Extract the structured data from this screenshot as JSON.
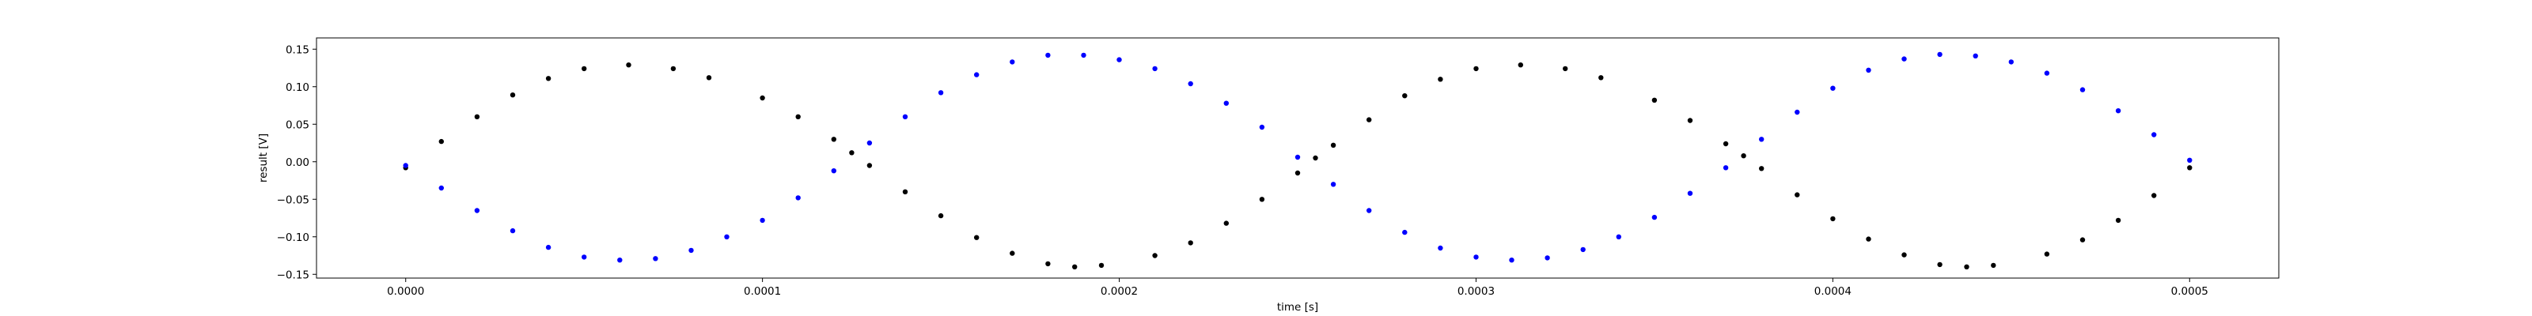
{
  "chart_data": {
    "type": "scatter",
    "title": "",
    "xlabel": "time [s]",
    "ylabel": "result [V]",
    "xlim": [
      -2.5e-05,
      0.000525
    ],
    "ylim": [
      -0.155,
      0.165
    ],
    "grid": false,
    "x_ticks": [
      {
        "value": 0.0,
        "label": "0.0000"
      },
      {
        "value": 0.0001,
        "label": "0.0001"
      },
      {
        "value": 0.0002,
        "label": "0.0002"
      },
      {
        "value": 0.0003,
        "label": "0.0003"
      },
      {
        "value": 0.0004,
        "label": "0.0004"
      },
      {
        "value": 0.0005,
        "label": "0.0005"
      }
    ],
    "y_ticks": [
      {
        "value": -0.15,
        "label": "−0.15"
      },
      {
        "value": -0.1,
        "label": "−0.10"
      },
      {
        "value": -0.05,
        "label": "−0.05"
      },
      {
        "value": 0.0,
        "label": "0.00"
      },
      {
        "value": 0.05,
        "label": "0.05"
      },
      {
        "value": 0.1,
        "label": "0.10"
      },
      {
        "value": 0.15,
        "label": "0.15"
      }
    ],
    "series": [
      {
        "color": "#000000",
        "points": [
          [
            0.0,
            -0.008
          ],
          [
            1e-05,
            0.027
          ],
          [
            2e-05,
            0.06
          ],
          [
            3e-05,
            0.089
          ],
          [
            4e-05,
            0.111
          ],
          [
            5e-05,
            0.124
          ],
          [
            6.25e-05,
            0.129
          ],
          [
            7.5e-05,
            0.124
          ],
          [
            8.5e-05,
            0.112
          ],
          [
            0.0001,
            0.085
          ],
          [
            0.00011,
            0.06
          ],
          [
            0.00012,
            0.03
          ],
          [
            0.000125,
            0.012
          ],
          [
            0.00013,
            -0.005
          ],
          [
            0.00014,
            -0.04
          ],
          [
            0.00015,
            -0.072
          ],
          [
            0.00016,
            -0.101
          ],
          [
            0.00017,
            -0.122
          ],
          [
            0.00018,
            -0.136
          ],
          [
            0.0001875,
            -0.14
          ],
          [
            0.000195,
            -0.138
          ],
          [
            0.00021,
            -0.125
          ],
          [
            0.00022,
            -0.108
          ],
          [
            0.00023,
            -0.082
          ],
          [
            0.00024,
            -0.05
          ],
          [
            0.00025,
            -0.015
          ],
          [
            0.000255,
            0.005
          ],
          [
            0.00026,
            0.022
          ],
          [
            0.00027,
            0.056
          ],
          [
            0.00028,
            0.088
          ],
          [
            0.00029,
            0.11
          ],
          [
            0.0003,
            0.124
          ],
          [
            0.0003125,
            0.129
          ],
          [
            0.000325,
            0.124
          ],
          [
            0.000335,
            0.112
          ],
          [
            0.00035,
            0.082
          ],
          [
            0.00036,
            0.055
          ],
          [
            0.00037,
            0.024
          ],
          [
            0.000375,
            0.008
          ],
          [
            0.00038,
            -0.009
          ],
          [
            0.00039,
            -0.044
          ],
          [
            0.0004,
            -0.076
          ],
          [
            0.00041,
            -0.103
          ],
          [
            0.00042,
            -0.124
          ],
          [
            0.00043,
            -0.137
          ],
          [
            0.0004375,
            -0.14
          ],
          [
            0.000445,
            -0.138
          ],
          [
            0.00046,
            -0.123
          ],
          [
            0.00047,
            -0.104
          ],
          [
            0.00048,
            -0.078
          ],
          [
            0.00049,
            -0.045
          ],
          [
            0.0005,
            -0.008
          ]
        ]
      },
      {
        "color": "#0000ff",
        "points": [
          [
            0.0,
            -0.005
          ],
          [
            1e-05,
            -0.035
          ],
          [
            2e-05,
            -0.065
          ],
          [
            3e-05,
            -0.092
          ],
          [
            4e-05,
            -0.114
          ],
          [
            5e-05,
            -0.127
          ],
          [
            6e-05,
            -0.131
          ],
          [
            7e-05,
            -0.129
          ],
          [
            8e-05,
            -0.118
          ],
          [
            9e-05,
            -0.1
          ],
          [
            0.0001,
            -0.078
          ],
          [
            0.00011,
            -0.048
          ],
          [
            0.00012,
            -0.012
          ],
          [
            0.00013,
            0.025
          ],
          [
            0.00014,
            0.06
          ],
          [
            0.00015,
            0.092
          ],
          [
            0.00016,
            0.116
          ],
          [
            0.00017,
            0.133
          ],
          [
            0.00018,
            0.142
          ],
          [
            0.00019,
            0.142
          ],
          [
            0.0002,
            0.136
          ],
          [
            0.00021,
            0.124
          ],
          [
            0.00022,
            0.104
          ],
          [
            0.00023,
            0.078
          ],
          [
            0.00024,
            0.046
          ],
          [
            0.00025,
            0.006
          ],
          [
            0.00026,
            -0.03
          ],
          [
            0.00027,
            -0.065
          ],
          [
            0.00028,
            -0.094
          ],
          [
            0.00029,
            -0.115
          ],
          [
            0.0003,
            -0.127
          ],
          [
            0.00031,
            -0.131
          ],
          [
            0.00032,
            -0.128
          ],
          [
            0.00033,
            -0.117
          ],
          [
            0.00034,
            -0.1
          ],
          [
            0.00035,
            -0.074
          ],
          [
            0.00036,
            -0.042
          ],
          [
            0.00037,
            -0.008
          ],
          [
            0.00038,
            0.03
          ],
          [
            0.00039,
            0.066
          ],
          [
            0.0004,
            0.098
          ],
          [
            0.00041,
            0.122
          ],
          [
            0.00042,
            0.137
          ],
          [
            0.00043,
            0.143
          ],
          [
            0.00044,
            0.141
          ],
          [
            0.00045,
            0.133
          ],
          [
            0.00046,
            0.118
          ],
          [
            0.00047,
            0.096
          ],
          [
            0.00048,
            0.068
          ],
          [
            0.00049,
            0.036
          ],
          [
            0.0005,
            0.002
          ]
        ]
      }
    ]
  }
}
